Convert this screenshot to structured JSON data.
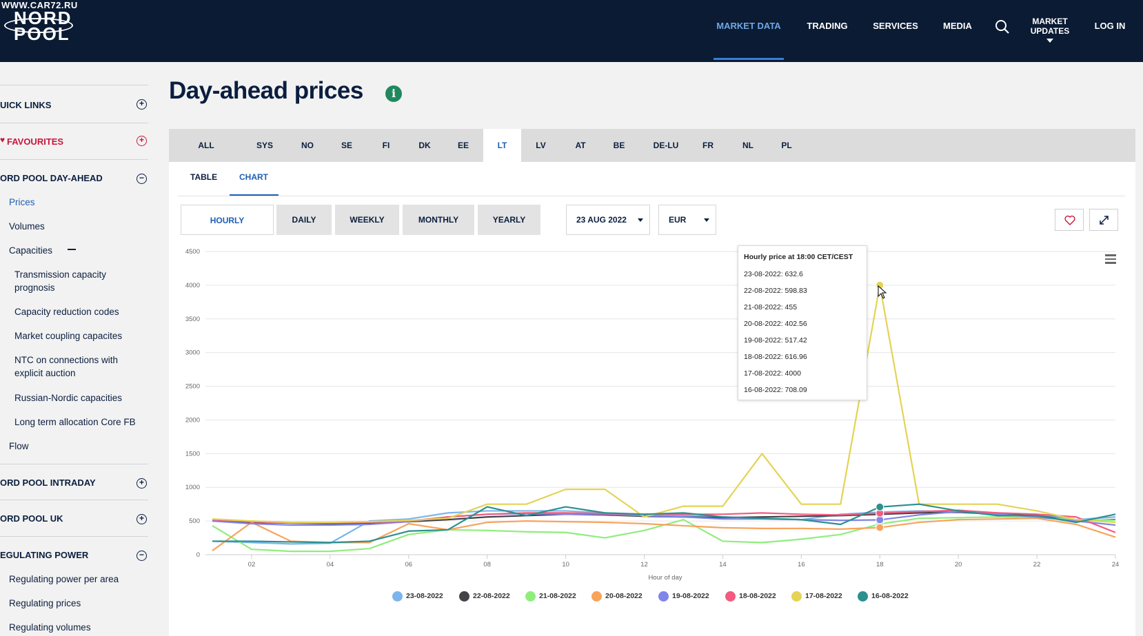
{
  "watermark": "WWW.CAR72.RU",
  "logo": {
    "line1": "NORD",
    "line2": "POOL",
    "overlay": "CAR72.RU"
  },
  "nav": {
    "items": [
      "MARKET DATA",
      "TRADING",
      "SERVICES",
      "MEDIA"
    ],
    "updates": "MARKET UPDATES",
    "login": "LOG IN",
    "active": "MARKET DATA"
  },
  "sidebar": {
    "quick_links": "UICK LINKS",
    "favourites": "FAVOURITES",
    "day_ahead": "ORD POOL DAY-AHEAD",
    "day_ahead_items": [
      "Prices",
      "Volumes",
      "Capacities"
    ],
    "capacities_items": [
      "Transmission capacity prognosis",
      "Capacity reduction codes",
      "Market coupling capacites",
      "NTC on connections with explicit auction",
      "Russian-Nordic capacities",
      "Long term allocation Core FB"
    ],
    "flow": "Flow",
    "intraday": "ORD POOL INTRADAY",
    "uk": "ORD POOL UK",
    "regulating": "EGULATING POWER",
    "regulating_items": [
      "Regulating power per area",
      "Regulating prices",
      "Regulating volumes"
    ]
  },
  "page": {
    "title": "Day-ahead prices"
  },
  "areas": [
    "ALL",
    "SYS",
    "NO",
    "SE",
    "FI",
    "DK",
    "EE",
    "LT",
    "LV",
    "AT",
    "BE",
    "DE-LU",
    "FR",
    "NL",
    "PL"
  ],
  "active_area": "LT",
  "view_tabs": [
    "TABLE",
    "CHART"
  ],
  "active_view": "CHART",
  "resolutions": [
    "HOURLY",
    "DAILY",
    "WEEKLY",
    "MONTHLY",
    "YEARLY"
  ],
  "active_resolution": "HOURLY",
  "date_select": "23 AUG 2022",
  "currency_select": "EUR",
  "tooltip": {
    "title": "Hourly price at 18:00 CET/CEST",
    "rows": [
      "23-08-2022: 632.6",
      "22-08-2022: 598.83",
      "21-08-2022: 455",
      "20-08-2022: 402.56",
      "19-08-2022: 517.42",
      "18-08-2022: 616.96",
      "17-08-2022: 4000",
      "16-08-2022: 708.09"
    ]
  },
  "chart_data": {
    "type": "line",
    "title": "",
    "xlabel": "Hour of day",
    "ylabel": "",
    "ylim": [
      0,
      4500
    ],
    "yticks": [
      "0",
      "500",
      "1000",
      "1500",
      "2000",
      "2500",
      "3000",
      "3500",
      "4000",
      "4500"
    ],
    "xticks": [
      "02",
      "04",
      "06",
      "08",
      "10",
      "12",
      "14",
      "16",
      "18",
      "20",
      "22",
      "24"
    ],
    "x": [
      1,
      2,
      3,
      4,
      5,
      6,
      7,
      8,
      9,
      10,
      11,
      12,
      13,
      14,
      15,
      16,
      17,
      18,
      19,
      20,
      21,
      22,
      23,
      24
    ],
    "grid": "horizontal",
    "legend": "bottom",
    "series": [
      {
        "name": "23-08-2022",
        "color": "#7cb5ec",
        "values": [
          200,
          180,
          160,
          170,
          500,
          530,
          620,
          650,
          650,
          650,
          620,
          600,
          580,
          560,
          540,
          520,
          600,
          632.6,
          650,
          640,
          620,
          600,
          520,
          560
        ]
      },
      {
        "name": "22-08-2022",
        "color": "#434348",
        "values": [
          500,
          480,
          470,
          460,
          470,
          490,
          520,
          560,
          580,
          600,
          590,
          570,
          560,
          550,
          560,
          570,
          580,
          598.83,
          620,
          630,
          600,
          580,
          500,
          520
        ]
      },
      {
        "name": "21-08-2022",
        "color": "#90ed7d",
        "values": [
          430,
          80,
          50,
          50,
          90,
          300,
          370,
          360,
          340,
          330,
          250,
          360,
          520,
          200,
          180,
          230,
          300,
          455,
          540,
          550,
          560,
          550,
          520,
          510
        ]
      },
      {
        "name": "20-08-2022",
        "color": "#f7a35c",
        "values": [
          60,
          480,
          200,
          180,
          180,
          460,
          370,
          480,
          500,
          490,
          480,
          460,
          430,
          400,
          390,
          390,
          380,
          402.56,
          480,
          520,
          530,
          540,
          450,
          260
        ]
      },
      {
        "name": "19-08-2022",
        "color": "#8085e9",
        "values": [
          500,
          460,
          440,
          440,
          450,
          490,
          560,
          600,
          610,
          600,
          600,
          580,
          560,
          530,
          530,
          520,
          510,
          517.42,
          590,
          640,
          600,
          560,
          500,
          440
        ]
      },
      {
        "name": "18-08-2022",
        "color": "#f15c80",
        "values": [
          520,
          490,
          470,
          470,
          480,
          500,
          560,
          600,
          620,
          620,
          610,
          600,
          600,
          600,
          620,
          600,
          590,
          616.96,
          640,
          660,
          620,
          600,
          560,
          330
        ]
      },
      {
        "name": "17-08-2022",
        "color": "#e4d354",
        "values": [
          530,
          500,
          480,
          480,
          490,
          510,
          540,
          750,
          750,
          970,
          970,
          560,
          720,
          720,
          1500,
          750,
          750,
          4000,
          750,
          750,
          750,
          650,
          520,
          480
        ]
      },
      {
        "name": "16-08-2022",
        "color": "#2b908f",
        "values": [
          200,
          200,
          190,
          180,
          200,
          350,
          370,
          710,
          580,
          710,
          620,
          600,
          620,
          560,
          540,
          520,
          450,
          708.09,
          750,
          650,
          580,
          580,
          480,
          600
        ]
      }
    ]
  }
}
